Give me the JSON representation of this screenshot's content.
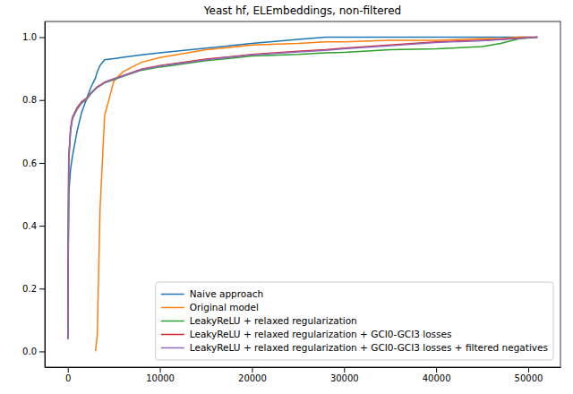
{
  "chart_data": {
    "type": "line",
    "title": "Yeast hf, ELEmbeddings, non-filtered",
    "x": [
      0,
      100,
      300,
      500,
      1000,
      1500,
      2000,
      2500,
      3000,
      3200,
      3500,
      4000,
      5000,
      6000,
      8000,
      10000,
      15000,
      20000,
      25000,
      28000,
      30000,
      35000,
      40000,
      45000,
      47000,
      49000,
      51000
    ],
    "series": [
      {
        "name": "Naive approach",
        "color": "#1f77b4",
        "values": [
          0.04,
          0.5,
          0.58,
          0.62,
          0.7,
          0.76,
          0.8,
          0.84,
          0.87,
          0.89,
          0.91,
          0.928,
          0.932,
          0.936,
          0.944,
          0.95,
          0.965,
          0.98,
          0.993,
          1.0,
          1.0,
          1.0,
          1.0,
          1.0,
          1.0,
          1.0,
          1.0
        ]
      },
      {
        "name": "Original model",
        "color": "#ff7f0e",
        "values": [
          null,
          null,
          null,
          null,
          null,
          null,
          null,
          null,
          0.0,
          0.05,
          0.45,
          0.75,
          0.86,
          0.89,
          0.92,
          0.935,
          0.96,
          0.975,
          0.98,
          0.985,
          0.985,
          0.99,
          0.99,
          0.995,
          0.995,
          1.0,
          1.0
        ]
      },
      {
        "name": "LeakyReLU + relaxed regularization",
        "color": "#2ca02c",
        "values": [
          0.04,
          0.6,
          0.7,
          0.74,
          0.77,
          0.79,
          0.8,
          0.82,
          0.835,
          0.84,
          0.845,
          0.855,
          0.865,
          0.875,
          0.895,
          0.905,
          0.925,
          0.94,
          0.945,
          0.95,
          0.952,
          0.96,
          0.963,
          0.97,
          0.98,
          0.995,
          1.0
        ]
      },
      {
        "name": "LeakyReLU + relaxed regularization + GCI0-GCI3 losses",
        "color": "#d62728",
        "values": [
          0.04,
          0.62,
          0.71,
          0.745,
          0.775,
          0.795,
          0.805,
          0.822,
          0.837,
          0.842,
          0.847,
          0.857,
          0.868,
          0.878,
          0.898,
          0.91,
          0.93,
          0.945,
          0.955,
          0.96,
          0.965,
          0.975,
          0.985,
          0.99,
          0.993,
          0.997,
          1.0
        ]
      },
      {
        "name": "LeakyReLU + relaxed regularization + GCI0-GCI3 losses + filtered negatives",
        "color": "#9467bd",
        "values": [
          0.04,
          0.61,
          0.705,
          0.742,
          0.772,
          0.792,
          0.803,
          0.821,
          0.836,
          0.841,
          0.846,
          0.856,
          0.867,
          0.877,
          0.897,
          0.908,
          0.928,
          0.944,
          0.953,
          0.958,
          0.963,
          0.973,
          0.983,
          0.989,
          0.992,
          0.996,
          1.0
        ]
      }
    ],
    "xlim": [
      -2500,
      53500
    ],
    "ylim": [
      -0.05,
      1.05
    ],
    "xticks": [
      0,
      10000,
      20000,
      30000,
      40000,
      50000
    ],
    "yticks": [
      {
        "value": 0,
        "label": "0.0"
      },
      {
        "value": 0.2,
        "label": "0.2"
      },
      {
        "value": 0.4,
        "label": "0.4"
      },
      {
        "value": 0.6,
        "label": "0.6"
      },
      {
        "value": 0.8,
        "label": "0.8"
      },
      {
        "value": 1.0,
        "label": "1.0"
      }
    ],
    "grid": false,
    "legend": "lower right"
  }
}
